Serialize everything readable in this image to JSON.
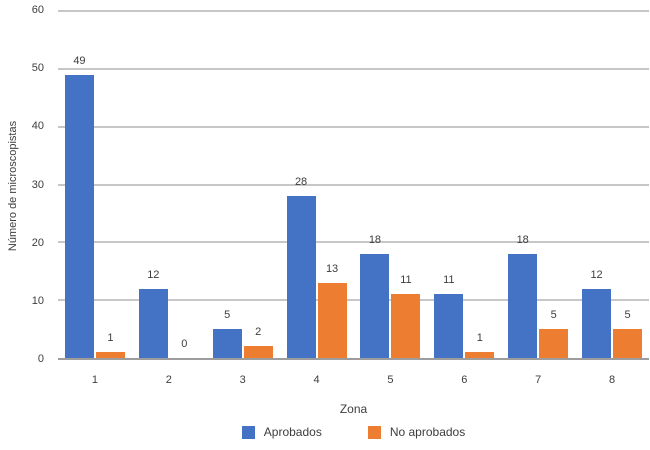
{
  "chart_data": {
    "type": "bar",
    "title": "",
    "xlabel": "Zona",
    "ylabel": "Número de microscopistas",
    "categories": [
      "1",
      "2",
      "3",
      "4",
      "5",
      "6",
      "7",
      "8"
    ],
    "series": [
      {
        "name": "Aprobados",
        "color": "#4472C4",
        "values": [
          49,
          12,
          5,
          28,
          18,
          11,
          18,
          12
        ]
      },
      {
        "name": "No aprobados",
        "color": "#ED7D31",
        "values": [
          1,
          0,
          2,
          13,
          11,
          1,
          5,
          5
        ]
      }
    ],
    "ylim": [
      0,
      60
    ],
    "yticks": [
      0,
      10,
      20,
      30,
      40,
      50,
      60
    ],
    "grid": true,
    "data_labels": true,
    "legend_position": "bottom"
  },
  "colors": {
    "gridline": "#c7c7c7",
    "axis_line": "#9d9d9d",
    "text": "#3d3d3d"
  }
}
